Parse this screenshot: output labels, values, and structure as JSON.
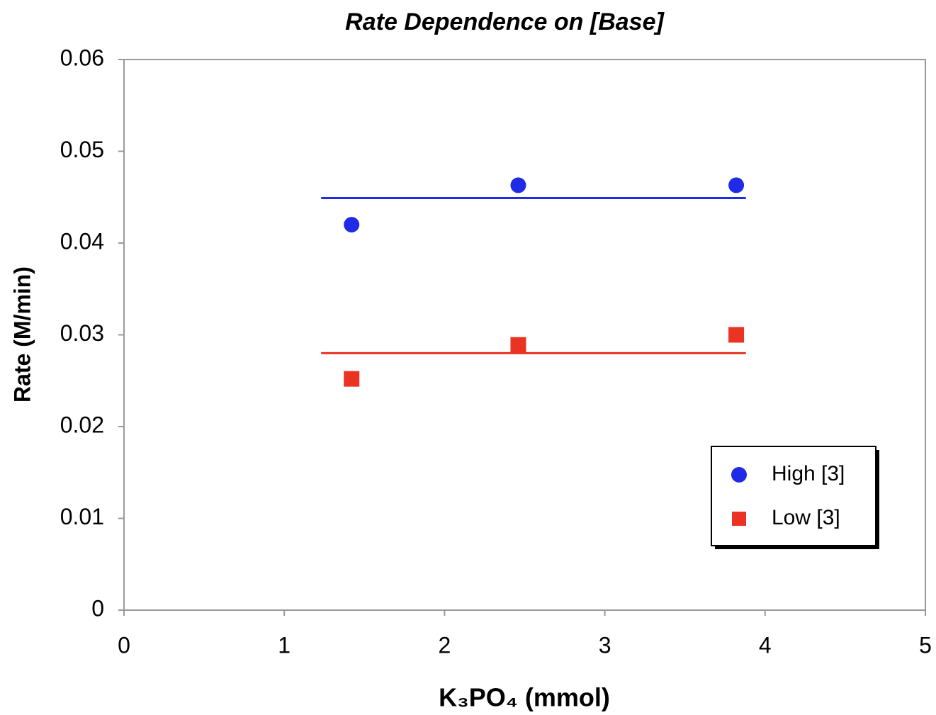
{
  "chart_data": {
    "type": "scatter",
    "title": "Rate Dependence on [Base]",
    "x_label": "K₃PO₄ (mmol)",
    "y_label": "Rate (M/min)",
    "xlim": [
      0,
      5
    ],
    "xticks": [
      0,
      1,
      2,
      3,
      4,
      5
    ],
    "ylim": [
      0,
      0.06
    ],
    "yticks": [
      0,
      0.01,
      0.02,
      0.03,
      0.04,
      0.05,
      0.06
    ],
    "grid": false,
    "legend": "lower right",
    "series": [
      {
        "name": "High [3]",
        "color": "#1f2be6",
        "marker": "circle",
        "x": [
          1.42,
          2.46,
          3.82
        ],
        "values": [
          0.042,
          0.0463,
          0.0463
        ],
        "trendline": {
          "x": [
            1.23,
            3.88
          ],
          "values": [
            0.0449,
            0.0449
          ]
        }
      },
      {
        "name": "Low [3]",
        "color": "#ea3323",
        "marker": "square",
        "x": [
          1.42,
          2.46,
          3.82
        ],
        "values": [
          0.0252,
          0.0289,
          0.03
        ],
        "trendline": {
          "x": [
            1.23,
            3.88
          ],
          "values": [
            0.028,
            0.028
          ]
        }
      }
    ]
  }
}
